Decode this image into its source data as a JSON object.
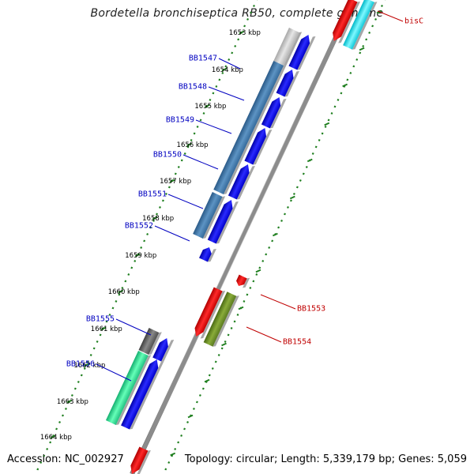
{
  "title": "Bordetella bronchiseptica RB50, complete genome",
  "footer": {
    "accession": "Accession: NC_002927",
    "info": "Topology: circular; Length: 5,339,179 bp; Genes: 5,059"
  },
  "colors": {
    "backbone": "#8c8c8c",
    "ruler": "#1f7f1f",
    "forward_label": "#0000c0",
    "reverse_label": "#c00000"
  },
  "kbp_ticks": [
    "1653 kbp",
    "1654 kbp",
    "1655 kbp",
    "1656 kbp",
    "1657 kbp",
    "1658 kbp",
    "1659 kbp",
    "1660 kbp",
    "1661 kbp",
    "1662 kbp",
    "1663 kbp",
    "1664 kbp"
  ],
  "forward_genes": [
    {
      "label": "BB1547"
    },
    {
      "label": "BB1548"
    },
    {
      "label": "BB1549"
    },
    {
      "label": "BB1550"
    },
    {
      "label": "BB1551"
    },
    {
      "label": "BB1552"
    },
    {
      "label": "BB1555"
    },
    {
      "label": "BB1556"
    }
  ],
  "reverse_genes": [
    {
      "label": "bisC"
    },
    {
      "label": "BB1553"
    },
    {
      "label": "BB1554"
    }
  ]
}
